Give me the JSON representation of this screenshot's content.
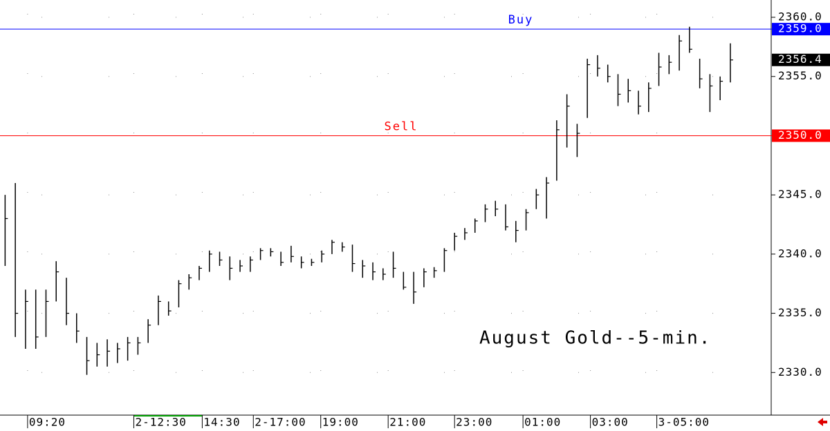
{
  "chart_data": {
    "type": "hlc",
    "annotation": "August Gold--5-min.",
    "high": [
      2345,
      2346,
      2337,
      2337,
      2337,
      2339.4,
      2338,
      2335,
      2333,
      2332.5,
      2332.8,
      2332.5,
      2333,
      2333,
      2334.5,
      2336.5,
      2336,
      2337.8,
      2338.3,
      2339,
      2340.3,
      2340.2,
      2339.8,
      2339.5,
      2339.8,
      2340.5,
      2340.5,
      2340.2,
      2340.7,
      2339.8,
      2339.6,
      2340.3,
      2341.2,
      2341,
      2340.8,
      2339.5,
      2339.3,
      2338.8,
      2340.2,
      2338.5,
      2338.5,
      2338.8,
      2338.9,
      2340.5,
      2341.8,
      2342.2,
      2343,
      2344.2,
      2344.5,
      2344.2,
      2342.8,
      2343.8,
      2345.5,
      2346.5,
      2351.3,
      2353.5,
      2351,
      2356.5,
      2356.8,
      2356,
      2355.2,
      2354.8,
      2353.8,
      2354.5,
      2357,
      2356.8,
      2358.5,
      2359.2,
      2356.5,
      2355.2,
      2355,
      2357.8
    ],
    "low": [
      2339,
      2333,
      2332,
      2332,
      2333,
      2336,
      2334,
      2332.5,
      2329.8,
      2330.5,
      2330.5,
      2330.8,
      2331,
      2331.5,
      2332.5,
      2334,
      2334.8,
      2335.5,
      2337,
      2337.8,
      2338.5,
      2339,
      2337.8,
      2338.5,
      2338.5,
      2339.5,
      2339.8,
      2339,
      2339.3,
      2338.8,
      2339,
      2339.3,
      2340,
      2340.2,
      2338.5,
      2338,
      2337.8,
      2337.8,
      2338,
      2337,
      2335.8,
      2337.2,
      2338,
      2338.5,
      2340.3,
      2341.2,
      2341.8,
      2342.7,
      2343.2,
      2342,
      2341,
      2342,
      2343.8,
      2343,
      2346.2,
      2349,
      2348.2,
      2351.5,
      2355,
      2354.5,
      2352.5,
      2352.8,
      2351.8,
      2352,
      2354.2,
      2355.2,
      2355.5,
      2357,
      2354,
      2352,
      2353,
      2354.5
    ],
    "close": [
      2343,
      2335,
      2336,
      2333,
      2336,
      2338.5,
      2335,
      2333.5,
      2331,
      2331.5,
      2331.8,
      2332,
      2332.5,
      2332.5,
      2334,
      2336,
      2335.2,
      2337.5,
      2338,
      2338.8,
      2340,
      2339.5,
      2338.8,
      2339,
      2339.5,
      2340.3,
      2340.2,
      2339.3,
      2339.8,
      2339.3,
      2339.3,
      2340,
      2341,
      2340.6,
      2339.2,
      2339,
      2338.5,
      2338.3,
      2338.8,
      2337.2,
      2336.8,
      2338.5,
      2338.6,
      2340.3,
      2341.5,
      2341.8,
      2342.8,
      2343.8,
      2343.8,
      2342.3,
      2342,
      2343.5,
      2345,
      2346,
      2350.5,
      2352.5,
      2350.2,
      2356,
      2355.7,
      2355,
      2353.5,
      2353.8,
      2352.5,
      2354,
      2355.8,
      2356.2,
      2358,
      2357.3,
      2354.8,
      2354.2,
      2354.6,
      2356.4
    ],
    "levels": [
      {
        "name": "Buy",
        "value": 2359,
        "value_label": "2359.0",
        "color": "#0000ff"
      },
      {
        "name": "Sell",
        "value": 2350,
        "value_label": "2350.0",
        "color": "#ff0000"
      }
    ],
    "xlim": [
      -0.5,
      75
    ],
    "xticks": [
      {
        "value": 2.2,
        "label": "09:20"
      },
      {
        "value": 12.6,
        "label": "2-12:30"
      },
      {
        "value": 19.3,
        "label": "14:30"
      },
      {
        "value": 24.3,
        "label": "2-17:00"
      },
      {
        "value": 30.9,
        "label": "19:00"
      },
      {
        "value": 37.5,
        "label": "21:00"
      },
      {
        "value": 44,
        "label": "23:00"
      },
      {
        "value": 50.7,
        "label": "01:00"
      },
      {
        "value": 57.3,
        "label": "03:00"
      },
      {
        "value": 63.8,
        "label": "3-05:00"
      }
    ],
    "ylim": [
      2326.4,
      2361.46
    ],
    "yticks": [
      {
        "value": 2330,
        "label": "2330.0"
      },
      {
        "value": 2335,
        "label": "2335.0"
      },
      {
        "value": 2340,
        "label": "2340.0"
      },
      {
        "value": 2345,
        "label": "2345.0"
      },
      {
        "value": 2350,
        "label": "2350.0"
      },
      {
        "value": 2355,
        "label": "2355.0"
      },
      {
        "value": 2360,
        "label": "2360.0"
      }
    ],
    "grid": true,
    "color": "#000000"
  }
}
